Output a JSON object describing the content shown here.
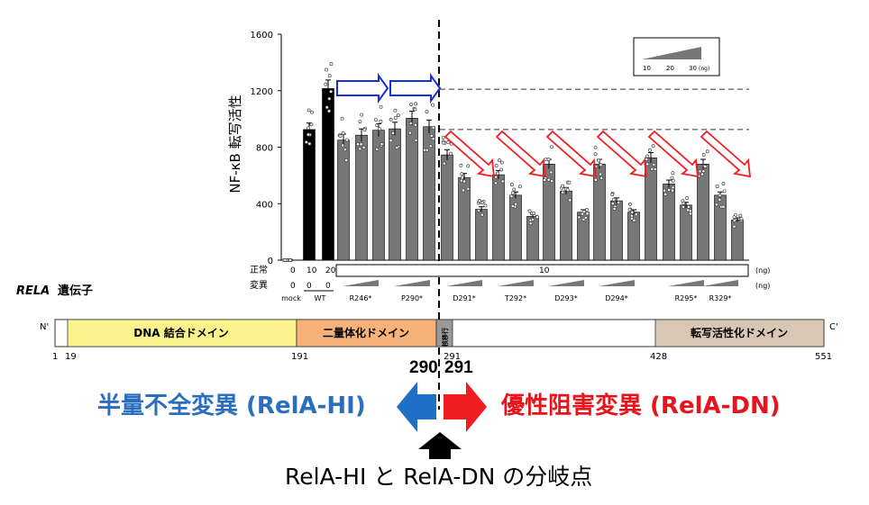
{
  "chart_data": {
    "type": "bar",
    "ylabel": "NF-κB 転写活性",
    "ylim": [
      0,
      1600
    ],
    "yticks": [
      "0",
      "400",
      "800",
      "1200",
      "1600"
    ],
    "reference_lines": [
      1210,
      925
    ],
    "bars": [
      {
        "group": "mock",
        "value": 0,
        "color": "#000000"
      },
      {
        "group": "WT",
        "value": 925,
        "color": "#000000"
      },
      {
        "group": "WT",
        "value": 1215,
        "color": "#000000"
      },
      {
        "group": "R246*",
        "value": 850,
        "color": "#777777"
      },
      {
        "group": "R246*",
        "value": 885,
        "color": "#777777"
      },
      {
        "group": "R246*",
        "value": 920,
        "color": "#777777"
      },
      {
        "group": "P290*",
        "value": 930,
        "color": "#777777"
      },
      {
        "group": "P290*",
        "value": 1005,
        "color": "#777777"
      },
      {
        "group": "P290*",
        "value": 945,
        "color": "#777777"
      },
      {
        "group": "D291*",
        "value": 745,
        "color": "#777777"
      },
      {
        "group": "D291*",
        "value": 585,
        "color": "#777777"
      },
      {
        "group": "D291*",
        "value": 360,
        "color": "#777777"
      },
      {
        "group": "T292*",
        "value": 605,
        "color": "#777777"
      },
      {
        "group": "T292*",
        "value": 460,
        "color": "#777777"
      },
      {
        "group": "T292*",
        "value": 310,
        "color": "#777777"
      },
      {
        "group": "D293*",
        "value": 680,
        "color": "#777777"
      },
      {
        "group": "D293*",
        "value": 490,
        "color": "#777777"
      },
      {
        "group": "D293*",
        "value": 340,
        "color": "#777777"
      },
      {
        "group": "D294*",
        "value": 680,
        "color": "#777777"
      },
      {
        "group": "D294*",
        "value": 420,
        "color": "#777777"
      },
      {
        "group": "D294*",
        "value": 340,
        "color": "#777777"
      },
      {
        "group": "R295*",
        "value": 725,
        "color": "#777777"
      },
      {
        "group": "R295*",
        "value": 540,
        "color": "#777777"
      },
      {
        "group": "R295*",
        "value": 390,
        "color": "#777777"
      },
      {
        "group": "R329*",
        "value": 680,
        "color": "#777777"
      },
      {
        "group": "R329*",
        "value": 460,
        "color": "#777777"
      },
      {
        "group": "R329*",
        "value": 285,
        "color": "#777777"
      }
    ],
    "groups": [
      "mock",
      "WT",
      "R246*",
      "P290*",
      "D291*",
      "T292*",
      "D293*",
      "D294*",
      "R295*",
      "R329*"
    ],
    "dose_legend": {
      "ticks": [
        "10",
        "20",
        "30"
      ],
      "unit": "(ng)"
    },
    "row_labels": {
      "normal": "正常",
      "mutant": "変異",
      "normal_values": [
        "0",
        "10",
        "20"
      ],
      "normal_box": "10",
      "mutant_values": [
        "0",
        "0",
        "0"
      ],
      "unit": "(ng)"
    }
  },
  "gene": {
    "label": "RELA",
    "label_suffix": "遺伝子",
    "n_term": "N'",
    "c_term": "C'",
    "domains": [
      {
        "name": "DNA 結合ドメイン",
        "color": "#fbf28c"
      },
      {
        "name": "二量体化ドメイン",
        "color": "#f7b27a"
      },
      {
        "name": "核移行",
        "color": "#9a9a9a"
      },
      {
        "name": "",
        "color": "#ffffff"
      },
      {
        "name": "転写活性化ドメイン",
        "color": "#d9c7b5"
      }
    ],
    "positions": [
      "1",
      "19",
      "191",
      "291",
      "428",
      "551"
    ]
  },
  "annotations": {
    "pos_290": "290",
    "pos_291": "291",
    "haploinsufficient": "半量不全変異 (RelA-HI)",
    "dominant_negative": "優性阻害変異 (RelA-DN)",
    "branch_point": "RelA-HI と RelA-DN の分岐点",
    "blue_color": "#2a6ebf",
    "red_color": "#e8141b"
  }
}
